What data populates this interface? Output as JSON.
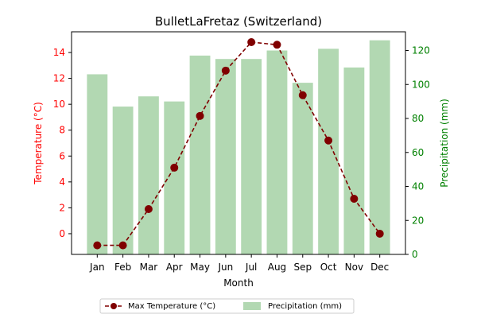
{
  "chart_data": {
    "type": "bar",
    "title": "BulletLaFretaz (Switzerland)",
    "xlabel": "Month",
    "categories": [
      "Jan",
      "Feb",
      "Mar",
      "Apr",
      "May",
      "Jun",
      "Jul",
      "Aug",
      "Sep",
      "Oct",
      "Nov",
      "Dec"
    ],
    "left_axis": {
      "label": "Temperature (°C)",
      "ylim": [
        -1.6,
        15.6
      ],
      "ticks": [
        0,
        2,
        4,
        6,
        8,
        10,
        12,
        14
      ],
      "tick_labels": [
        "0",
        "2",
        "4",
        "6",
        "8",
        "10",
        "12",
        "14"
      ],
      "color": "#ff0000"
    },
    "right_axis": {
      "label": "Precipitation (mm)",
      "ylim": [
        0,
        131
      ],
      "ticks": [
        0,
        20,
        40,
        60,
        80,
        100,
        120
      ],
      "tick_labels": [
        "0",
        "20",
        "40",
        "60",
        "80",
        "100",
        "120"
      ],
      "color": "#008000"
    },
    "series": [
      {
        "name": "Max Temperature (°C)",
        "type": "line",
        "axis": "left",
        "color": "#800000",
        "line_style": "dashed",
        "marker": "circle",
        "values": [
          -0.9,
          -0.9,
          1.9,
          5.1,
          9.1,
          12.6,
          14.8,
          14.6,
          10.7,
          7.2,
          2.7,
          0.0
        ]
      },
      {
        "name": "Precipitation (mm)",
        "type": "bar",
        "axis": "right",
        "color": "#b2d8b2",
        "values": [
          106,
          87,
          93,
          90,
          117,
          115,
          115,
          120,
          101,
          121,
          110,
          126
        ]
      }
    ],
    "legend": {
      "placement": "bottom-center",
      "entries": [
        "Max Temperature (°C)",
        "Precipitation (mm)"
      ]
    },
    "grid": false
  }
}
